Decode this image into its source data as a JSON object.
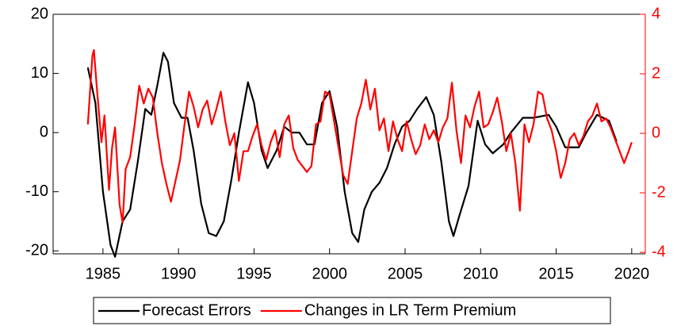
{
  "chart_data": {
    "type": "line",
    "xlim": [
      1981.7,
      2020.9
    ],
    "xticks": [
      1985,
      1990,
      1995,
      2000,
      2005,
      2010,
      2015,
      2020
    ],
    "ylim": [
      -20.5,
      20
    ],
    "yticks": [
      -20,
      -10,
      0,
      10,
      20
    ],
    "y2lim": [
      -4.05,
      4
    ],
    "y2ticks": [
      -4,
      -2,
      0,
      2,
      4
    ],
    "y2color": "#ff0000",
    "grid": false,
    "legend": "bottom",
    "series": [
      {
        "name": "Forecast Errors",
        "color": "#000000",
        "x": [
          1984.0,
          1984.5,
          1985.0,
          1985.5,
          1985.8,
          1986.3,
          1986.8,
          1987.3,
          1987.8,
          1988.2,
          1988.6,
          1989.0,
          1989.3,
          1989.7,
          1990.2,
          1990.6,
          1991.0,
          1991.5,
          1992.0,
          1992.5,
          1993.0,
          1993.5,
          1994.0,
          1994.6,
          1995.0,
          1995.5,
          1995.9,
          1996.5,
          1997.0,
          1997.5,
          1998.0,
          1998.5,
          1999.0,
          1999.5,
          2000.0,
          2000.5,
          2001.0,
          2001.5,
          2001.9,
          2002.3,
          2002.8,
          2003.3,
          2003.8,
          2004.3,
          2004.8,
          2005.3,
          2005.8,
          2006.4,
          2006.9,
          2007.4,
          2007.9,
          2008.2,
          2008.6,
          2009.2,
          2009.8,
          2010.3,
          2010.8,
          2011.5,
          2012.0,
          2012.8,
          2013.5,
          2014.5,
          2015.0,
          2015.6,
          2016.5,
          2017.0,
          2017.7,
          2018.5,
          2019.0
        ],
        "values": [
          11,
          5,
          -10,
          -19,
          -21,
          -15,
          -13,
          -5,
          4,
          3,
          8,
          13.5,
          12,
          5,
          2.5,
          2.5,
          -3,
          -12,
          -17,
          -17.5,
          -15,
          -8,
          0,
          8.5,
          5,
          -3,
          -6,
          -3,
          1,
          0,
          0,
          -2,
          -2,
          5,
          7,
          1,
          -10,
          -17,
          -18.5,
          -13,
          -10,
          -8.5,
          -6,
          -2,
          1,
          2,
          4,
          6,
          3,
          -5,
          -15,
          -17.5,
          -14,
          -9,
          2,
          -2,
          -3.5,
          -2,
          0,
          2.5,
          2.5,
          3,
          1,
          -2.5,
          -2.5,
          0,
          3,
          2,
          -1.5
        ]
      },
      {
        "name": "Changes in LR Term Premium",
        "color": "#ff0000",
        "axis": "y2",
        "x": [
          1984.0,
          1984.3,
          1984.4,
          1984.6,
          1984.9,
          1985.1,
          1985.4,
          1985.6,
          1985.8,
          1986.1,
          1986.3,
          1986.5,
          1986.8,
          1987.1,
          1987.4,
          1987.7,
          1988.0,
          1988.3,
          1988.6,
          1988.9,
          1989.2,
          1989.5,
          1989.8,
          1990.1,
          1990.4,
          1990.7,
          1991.0,
          1991.3,
          1991.6,
          1991.9,
          1992.2,
          1992.5,
          1992.8,
          1993.1,
          1993.4,
          1993.7,
          1994.0,
          1994.3,
          1994.6,
          1994.9,
          1995.2,
          1995.5,
          1995.8,
          1996.1,
          1996.4,
          1996.7,
          1997.0,
          1997.3,
          1997.6,
          1997.9,
          1998.2,
          1998.5,
          1998.8,
          1999.1,
          1999.4,
          1999.7,
          2000.0,
          2000.3,
          2000.6,
          2000.9,
          2001.2,
          2001.5,
          2001.8,
          2002.1,
          2002.4,
          2002.7,
          2003.0,
          2003.3,
          2003.6,
          2003.9,
          2004.2,
          2004.5,
          2004.8,
          2005.1,
          2005.4,
          2005.7,
          2006.0,
          2006.3,
          2006.6,
          2006.9,
          2007.2,
          2007.5,
          2007.8,
          2008.1,
          2008.4,
          2008.7,
          2009.0,
          2009.3,
          2009.6,
          2009.9,
          2010.2,
          2010.5,
          2010.8,
          2011.1,
          2011.4,
          2011.7,
          2012.0,
          2012.3,
          2012.6,
          2012.9,
          2013.2,
          2013.5,
          2013.8,
          2014.1,
          2014.4,
          2014.7,
          2015.0,
          2015.3,
          2015.6,
          2015.9,
          2016.2,
          2016.5,
          2016.8,
          2017.1,
          2017.4,
          2017.7,
          2018.0,
          2018.3,
          2018.6,
          2018.9,
          2019.2,
          2019.5,
          2019.8,
          2020.0
        ],
        "values": [
          0.3,
          2.6,
          2.8,
          1.5,
          -0.3,
          0.6,
          -1.9,
          -0.5,
          0.2,
          -2.4,
          -3.0,
          -1.2,
          -0.8,
          0.3,
          1.6,
          1.0,
          1.5,
          1.2,
          0.0,
          -1.0,
          -1.7,
          -2.3,
          -1.6,
          -0.9,
          0.3,
          1.4,
          0.9,
          0.2,
          0.8,
          1.1,
          0.3,
          0.8,
          1.4,
          0.4,
          -0.4,
          0.0,
          -1.6,
          -0.6,
          -0.6,
          -0.1,
          0.3,
          -0.4,
          -0.9,
          -0.3,
          0.1,
          -0.8,
          0.3,
          0.6,
          -0.5,
          -0.9,
          -1.1,
          -1.3,
          -1.1,
          0.3,
          0.4,
          1.4,
          1.3,
          0.4,
          -0.5,
          -1.4,
          -1.7,
          -0.6,
          0.5,
          1.0,
          1.8,
          0.8,
          1.5,
          0.1,
          0.5,
          -0.6,
          0.4,
          -0.2,
          -0.6,
          0.4,
          -0.2,
          -0.7,
          -0.4,
          0.3,
          -0.2,
          0.1,
          -0.3,
          0.2,
          0.5,
          1.7,
          0.1,
          -1.0,
          0.6,
          0.2,
          0.9,
          1.4,
          0.2,
          0.3,
          0.7,
          1.2,
          0.4,
          -0.6,
          0.0,
          -1.0,
          -2.6,
          0.3,
          -0.3,
          0.3,
          1.4,
          1.3,
          0.5,
          0.1,
          -0.6,
          -1.5,
          -1.0,
          -0.2,
          0.0,
          -0.4,
          -0.1,
          0.4,
          0.6,
          1.0,
          0.4,
          0.5,
          0.2,
          -0.2,
          -0.6,
          -1.0,
          -0.6,
          -0.3
        ]
      }
    ]
  }
}
